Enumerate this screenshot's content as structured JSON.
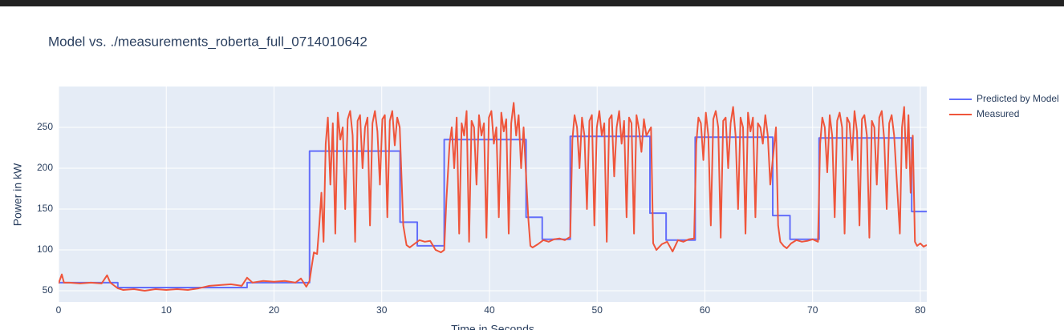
{
  "chart_data": {
    "type": "line",
    "title": "Model vs. ./measurements_roberta_full_0714010642",
    "x_label": "Time in Seconds",
    "y_label": "Power in kW",
    "xlim": [
      0,
      80.6
    ],
    "ylim": [
      36.3,
      300
    ],
    "xticks": [
      0,
      10,
      20,
      30,
      40,
      50,
      60,
      70,
      80
    ],
    "yticks": [
      50,
      100,
      150,
      200,
      250
    ],
    "grid": true,
    "legend": "right",
    "series": [
      {
        "name": "Predicted by Model",
        "color": "#636efa",
        "x": [
          0,
          5.5,
          5.5,
          17.5,
          17.5,
          23.3,
          23.3,
          31.7,
          31.7,
          33.3,
          33.3,
          35.8,
          35.8,
          43.4,
          43.4,
          44.9,
          44.9,
          47.5,
          47.5,
          54.9,
          54.9,
          56.4,
          56.4,
          59.1,
          59.1,
          66.3,
          66.3,
          67.9,
          67.9,
          70.6,
          70.6,
          79.2,
          79.2,
          80.6
        ],
        "values": [
          60,
          60,
          54,
          54,
          60,
          60,
          221,
          221,
          134,
          134,
          105,
          105,
          235,
          235,
          140,
          140,
          113,
          113,
          239,
          239,
          145,
          145,
          112,
          112,
          238,
          238,
          142,
          142,
          113,
          113,
          237,
          237,
          147,
          147
        ]
      },
      {
        "name": "Measured",
        "color": "#ef553b",
        "x": [
          0,
          0.3,
          0.5,
          1,
          2,
          3,
          4,
          4.5,
          4.8,
          5,
          5.5,
          6,
          7,
          8,
          9,
          10,
          11,
          12,
          13,
          14,
          15,
          16,
          17,
          17.5,
          18,
          19,
          20,
          21,
          22,
          22.5,
          23,
          23.3,
          23.5,
          23.7,
          24,
          24.2,
          24.4,
          24.6,
          24.8,
          25,
          25.23,
          25.46,
          25.69,
          25.92,
          26.15,
          26.38,
          26.61,
          26.84,
          27.07,
          27.3,
          27.53,
          27.76,
          27.99,
          28.22,
          28.45,
          28.68,
          28.91,
          29.14,
          29.37,
          29.6,
          29.83,
          30.06,
          30.29,
          30.52,
          30.75,
          30.98,
          31.21,
          31.44,
          31.67,
          32,
          32.3,
          32.6,
          33,
          33.5,
          34,
          34.5,
          35,
          35.5,
          35.8,
          36,
          36.3,
          36.5,
          36.73,
          36.96,
          37.19,
          37.42,
          37.65,
          37.88,
          38.11,
          38.34,
          38.57,
          38.8,
          39.03,
          39.26,
          39.49,
          39.72,
          39.95,
          40.18,
          40.41,
          40.64,
          40.87,
          41.1,
          41.33,
          41.56,
          41.79,
          42.02,
          42.25,
          42.48,
          42.71,
          42.94,
          43.17,
          43.6,
          43.8,
          44,
          44.5,
          45,
          45.5,
          46,
          46.5,
          47,
          47.5,
          47.7,
          47.9,
          48.13,
          48.36,
          48.59,
          48.82,
          49.05,
          49.28,
          49.51,
          49.74,
          49.97,
          50.2,
          50.43,
          50.66,
          50.89,
          51.12,
          51.35,
          51.58,
          51.81,
          52.04,
          52.27,
          52.5,
          52.73,
          52.96,
          53.19,
          53.42,
          53.65,
          53.88,
          54.11,
          54.34,
          54.57,
          55,
          55.2,
          55.5,
          56,
          56.5,
          57,
          57.5,
          58,
          58.5,
          59,
          59.2,
          59.4,
          59.63,
          59.86,
          60.09,
          60.32,
          60.55,
          60.78,
          61.01,
          61.24,
          61.47,
          61.7,
          61.93,
          62.16,
          62.39,
          62.62,
          62.85,
          63.08,
          63.31,
          63.54,
          63.77,
          64,
          64.23,
          64.46,
          64.69,
          64.92,
          65.15,
          65.38,
          65.61,
          65.84,
          66.07,
          66.6,
          66.8,
          67,
          67.3,
          67.6,
          68,
          68.5,
          69,
          69.5,
          70,
          70.5,
          70.7,
          70.9,
          71.13,
          71.36,
          71.59,
          71.82,
          72.05,
          72.28,
          72.51,
          72.74,
          72.97,
          73.2,
          73.43,
          73.66,
          73.89,
          74.12,
          74.35,
          74.58,
          74.81,
          75.04,
          75.27,
          75.5,
          75.73,
          75.96,
          76.19,
          76.42,
          76.65,
          76.88,
          77.11,
          77.34,
          77.57,
          78.1,
          78.3,
          78.5,
          78.7,
          78.9,
          79.1,
          79.3,
          79.5,
          79.7,
          80,
          80.3,
          80.6
        ],
        "values": [
          59,
          70,
          60,
          60,
          59,
          60,
          59,
          69,
          60,
          58,
          53,
          51,
          52,
          50,
          52,
          51,
          52,
          51,
          53,
          56,
          57,
          58,
          56,
          66,
          60,
          62,
          61,
          62,
          60,
          65,
          55,
          62,
          80,
          97,
          95,
          130,
          170,
          110,
          230,
          262,
          180,
          255,
          120,
          268,
          235,
          250,
          150,
          260,
          270,
          240,
          110,
          258,
          265,
          200,
          250,
          262,
          130,
          255,
          270,
          245,
          180,
          260,
          265,
          140,
          258,
          270,
          228,
          262,
          250,
          130,
          106,
          103,
          107,
          112,
          110,
          111,
          100,
          97,
          100,
          160,
          230,
          250,
          200,
          262,
          120,
          255,
          240,
          270,
          110,
          258,
          250,
          180,
          265,
          240,
          255,
          115,
          262,
          270,
          230,
          250,
          140,
          268,
          245,
          260,
          120,
          255,
          280,
          240,
          265,
          200,
          250,
          140,
          105,
          103,
          107,
          112,
          110,
          113,
          114,
          112,
          116,
          235,
          265,
          250,
          200,
          262,
          240,
          150,
          258,
          265,
          130,
          250,
          270,
          240,
          255,
          110,
          260,
          265,
          190,
          250,
          270,
          230,
          258,
          140,
          262,
          255,
          120,
          265,
          248,
          220,
          260,
          240,
          250,
          108,
          100,
          107,
          110,
          98,
          112,
          110,
          113,
          114,
          230,
          262,
          255,
          210,
          268,
          240,
          130,
          260,
          270,
          250,
          115,
          258,
          262,
          200,
          255,
          275,
          240,
          150,
          262,
          250,
          120,
          268,
          245,
          262,
          140,
          255,
          250,
          230,
          265,
          240,
          180,
          250,
          130,
          110,
          105,
          102,
          108,
          112,
          110,
          111,
          113,
          110,
          230,
          262,
          250,
          195,
          265,
          240,
          140,
          258,
          268,
          250,
          120,
          262,
          255,
          210,
          270,
          245,
          130,
          260,
          265,
          240,
          115,
          258,
          250,
          180,
          262,
          270,
          235,
          150,
          255,
          265,
          240,
          120,
          250,
          275,
          200,
          265,
          170,
          240,
          110,
          105,
          108,
          104,
          106
        ]
      }
    ]
  }
}
